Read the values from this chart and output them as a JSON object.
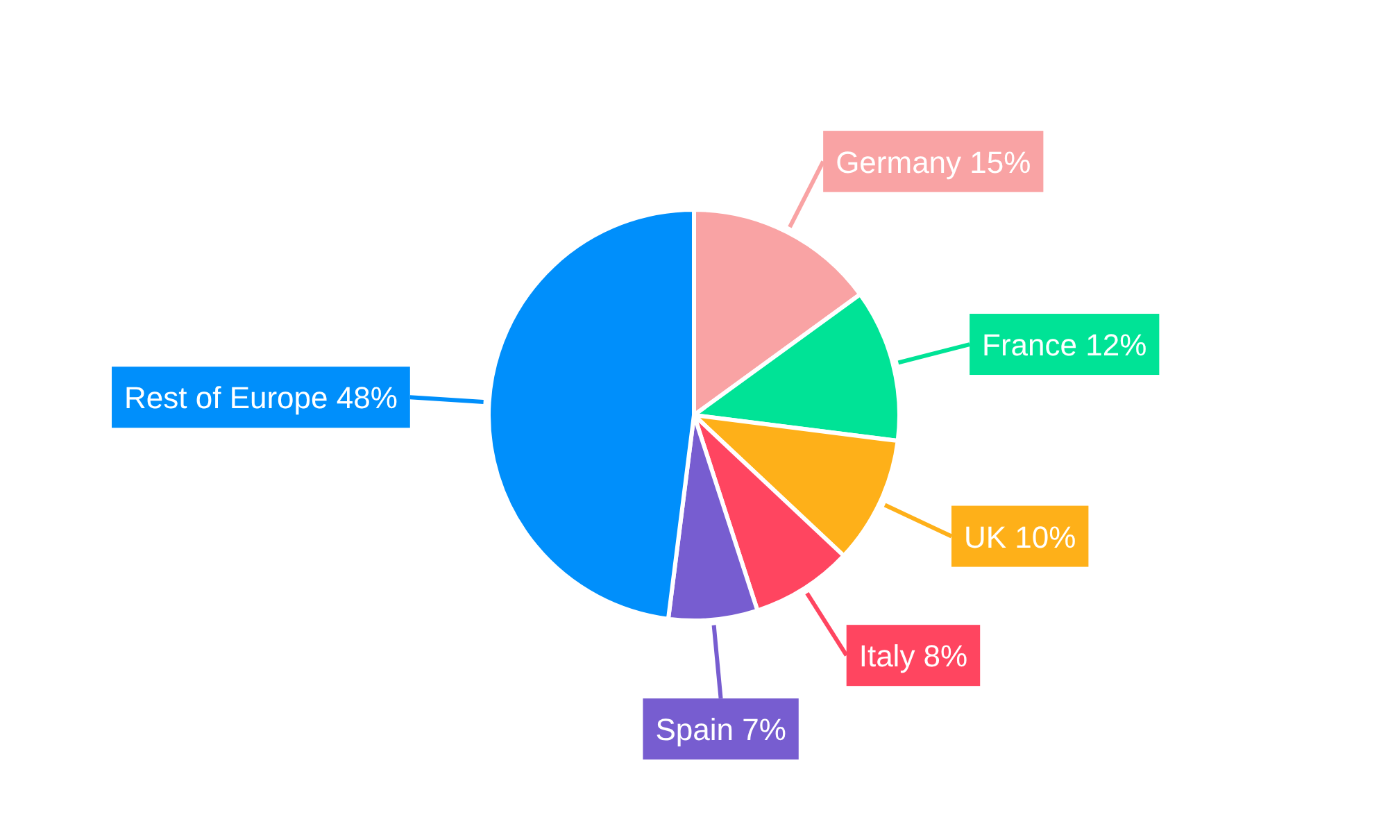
{
  "chart_data": {
    "type": "pie",
    "categories": [
      "Germany",
      "France",
      "UK",
      "Italy",
      "Spain",
      "Rest of Europe"
    ],
    "values": [
      15,
      12,
      10,
      8,
      7,
      48
    ],
    "colors": [
      "#f9a3a4",
      "#00e396",
      "#feb019",
      "#ff4560",
      "#775dd0",
      "#008ffb"
    ],
    "value_labels": [
      "15%",
      "12%",
      "10%",
      "8%",
      "7%",
      "48%"
    ]
  }
}
